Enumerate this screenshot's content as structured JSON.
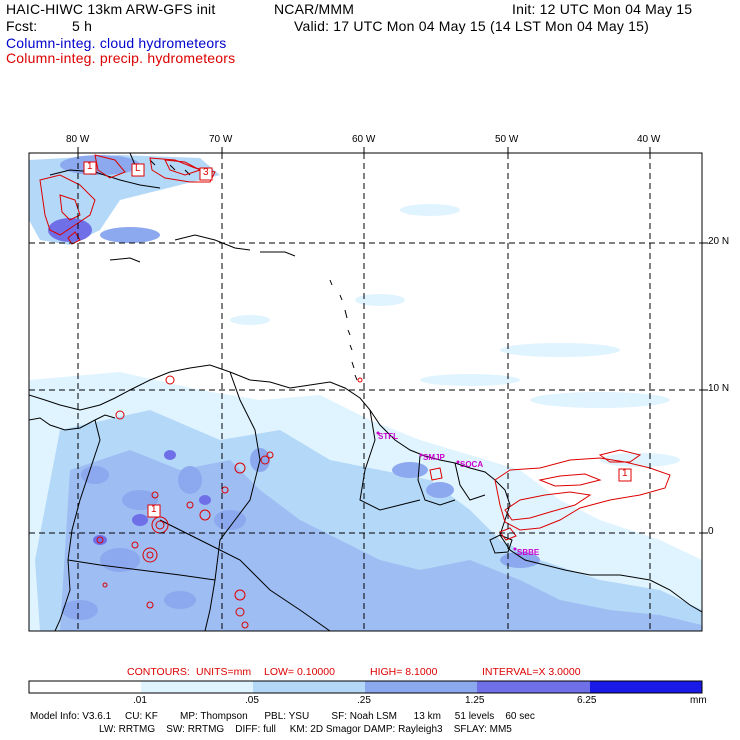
{
  "header": {
    "model_title": "HAIC-HIWC 13km ARW-GFS init",
    "org": "NCAR/MMM",
    "init": "Init: 12 UTC Mon 04 May 15",
    "fcst_label": "Fcst:",
    "fcst_value": "5 h",
    "valid": "Valid: 17 UTC Mon 04 May 15 (14 LST Mon 04 May 15)",
    "field_cloud": "Column-integ. cloud hydrometeors",
    "field_precip": "Column-integ. precip. hydrometeors"
  },
  "colors": {
    "cloud_text": "#0000cc",
    "precip_text": "#dd0000",
    "label_magenta": "#cc00cc",
    "shade_1": "#e0f4ff",
    "shade_2": "#b4d8f8",
    "shade_3": "#8ca8ee",
    "shade_4": "#6f6fe8",
    "shade_5": "#4444dd",
    "shade_6": "#1a1ae8"
  },
  "map": {
    "lon_labels": [
      "80 W",
      "70 W",
      "60 W",
      "50 W",
      "40 W"
    ],
    "lat_labels": [
      "20 N",
      "10 N",
      "0"
    ],
    "station_labels": [
      "STFL",
      "SMJP",
      "SOCA",
      "SBBE"
    ],
    "high_marker": "1",
    "low_marker": "L",
    "marker_3": "3"
  },
  "contour_info": {
    "contours": "CONTOURS:",
    "units": "UNITS=mm",
    "low": "LOW= 0.10000",
    "high": "HIGH= 8.1000",
    "interval": "INTERVAL=X 3.0000"
  },
  "colorbar": {
    "labels": [
      ".01",
      ".05",
      ".25",
      "1.25",
      "6.25"
    ],
    "units": "mm"
  },
  "footer": {
    "line1": "Model Info: V3.6.1     CU: KF        MP: Thompson      PBL: YSU        SF: Noah LSM      13 km     51 levels    60 sec",
    "line2": "LW: RRTMG    SW: RRTMG    DIFF: full     KM: 2D Smagor DAMP: Rayleigh3    SFLAY: MM5"
  }
}
